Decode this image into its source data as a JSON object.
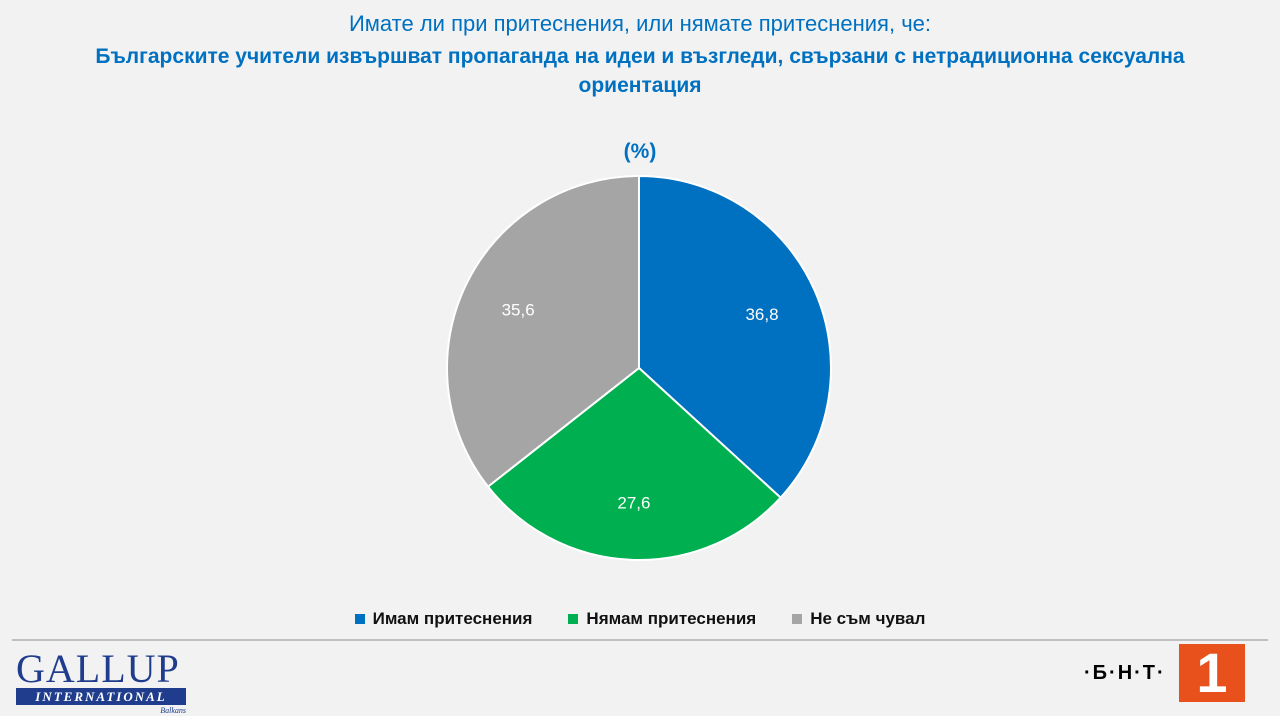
{
  "header": {
    "subtitle": "Имате ли при притеснения, или нямате притеснения, че:",
    "title": "Българските учители извършват пропаганда на идеи и възгледи, свързани с нетрадиционна сексуална ориентация",
    "unit": "(%)"
  },
  "chart_data": {
    "type": "pie",
    "categories": [
      "Имам притеснения",
      "Нямам притеснения",
      "Не съм чувал"
    ],
    "values": [
      36.8,
      27.6,
      35.6
    ],
    "value_labels": [
      "36,8",
      "27,6",
      "35,6"
    ],
    "colors": [
      "#0070c0",
      "#00b050",
      "#a5a5a5"
    ],
    "start_angle_deg": 0,
    "direction": "clockwise",
    "legend_position": "bottom"
  },
  "footer": {
    "gallup_logo": {
      "word": "GALLUP",
      "band": "INTERNATIONAL",
      "sub": "Balkans"
    },
    "bnt_logo": {
      "text": "·Б·Н·Т·",
      "number": "1"
    }
  }
}
